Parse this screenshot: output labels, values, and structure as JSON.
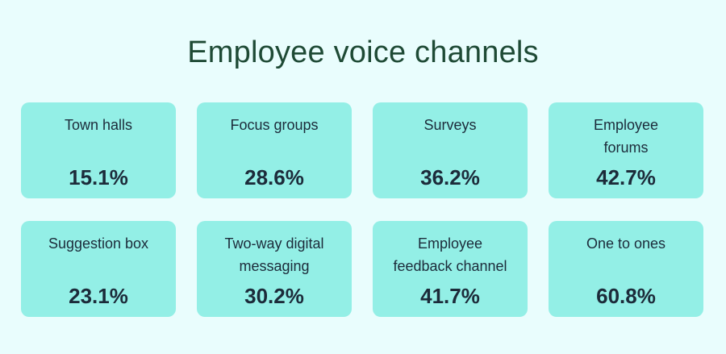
{
  "title": "Employee voice channels",
  "cards": [
    {
      "label": "Town halls",
      "value": "15.1%"
    },
    {
      "label": "Focus groups",
      "value": "28.6%"
    },
    {
      "label": "Surveys",
      "value": "36.2%"
    },
    {
      "label": "Employee\nforums",
      "value": "42.7%"
    },
    {
      "label": "Suggestion box",
      "value": "23.1%"
    },
    {
      "label": "Two-way digital\nmessaging",
      "value": "30.2%"
    },
    {
      "label": "Employee\nfeedback channel",
      "value": "41.7%"
    },
    {
      "label": "One to ones",
      "value": "60.8%"
    }
  ],
  "colors": {
    "background": "#e9fdfd",
    "card": "#93efe6",
    "title": "#1e4a35",
    "text": "#1c2b3a"
  }
}
